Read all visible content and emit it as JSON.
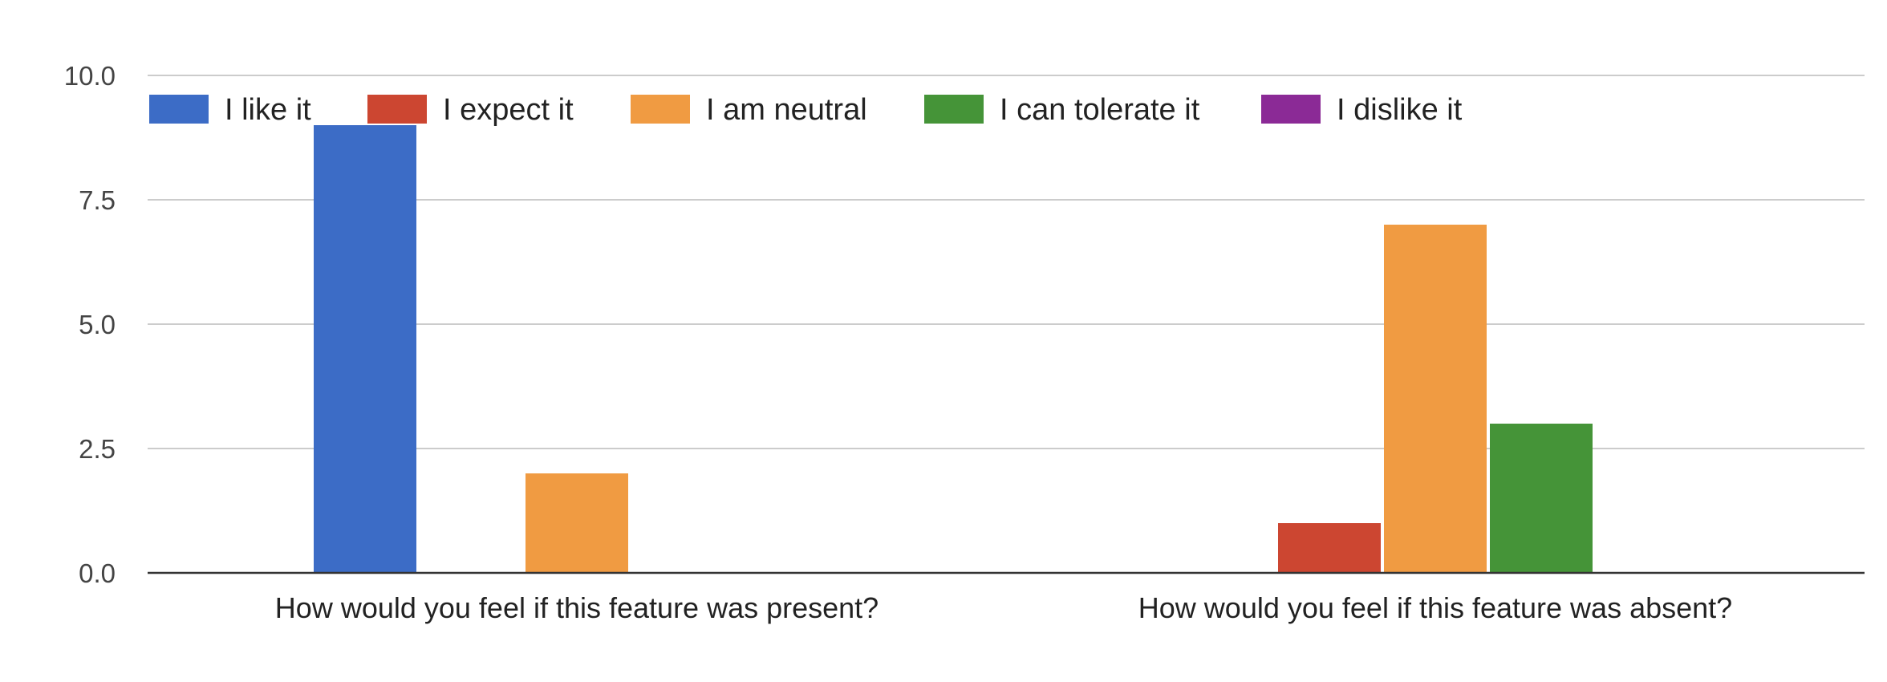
{
  "chart_data": {
    "type": "bar",
    "categories": [
      "How would you feel if this feature was present?",
      "How would you feel if this feature was absent?"
    ],
    "series": [
      {
        "name": "I like it",
        "color": "#3c6cc6",
        "values": [
          9,
          0
        ]
      },
      {
        "name": "I expect it",
        "color": "#cc4631",
        "values": [
          0,
          1
        ]
      },
      {
        "name": "I am neutral",
        "color": "#f09b42",
        "values": [
          2,
          7
        ]
      },
      {
        "name": "I can tolerate it",
        "color": "#459438",
        "values": [
          0,
          3
        ]
      },
      {
        "name": "I dislike it",
        "color": "#8b2a96",
        "values": [
          0,
          0
        ]
      }
    ],
    "yticks": [
      "0.0",
      "2.5",
      "5.0",
      "7.5",
      "10.0"
    ],
    "ylim": [
      0,
      10
    ],
    "grid": true,
    "legend_position": "top-left"
  }
}
